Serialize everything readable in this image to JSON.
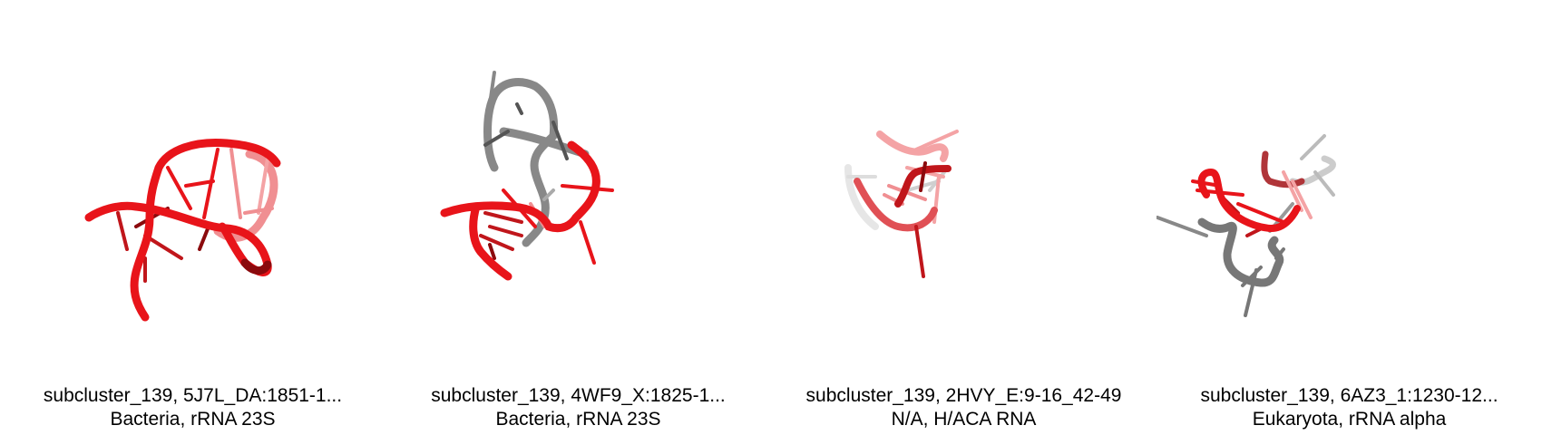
{
  "colors": {
    "rna_red": "#e8141a",
    "rna_dark_red": "#8b0a0d",
    "rna_light_red": "#f4a3a5",
    "rna_gray": "#777777",
    "rna_light_gray": "#cfcfcf"
  },
  "panels": [
    {
      "title": "subcluster_139, 5J7L_DA:1851-1...",
      "subtitle": "Bacteria, rRNA 23S"
    },
    {
      "title": "subcluster_139, 4WF9_X:1825-1...",
      "subtitle": "Bacteria, rRNA 23S"
    },
    {
      "title": "subcluster_139, 2HVY_E:9-16_42-49",
      "subtitle": "N/A, H/ACA RNA"
    },
    {
      "title": "subcluster_139, 6AZ3_1:1230-12...",
      "subtitle": "Eukaryota, rRNA alpha"
    }
  ]
}
